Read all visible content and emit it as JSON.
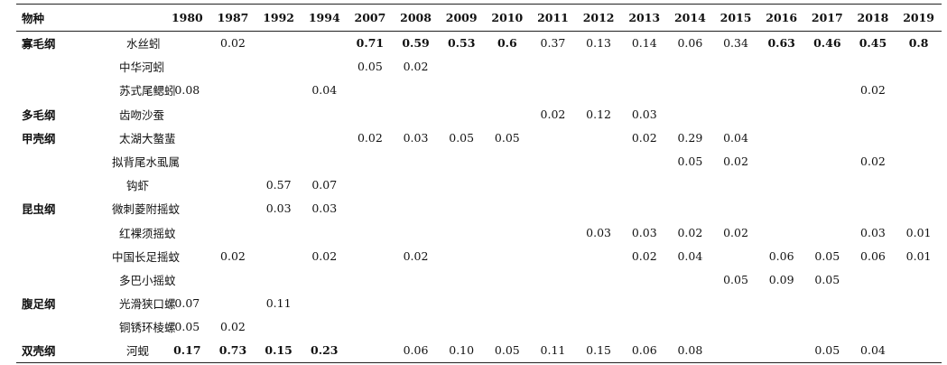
{
  "table": {
    "header_label": "物种",
    "years": [
      "1980",
      "1987",
      "1992",
      "1994",
      "2007",
      "2008",
      "2009",
      "2010",
      "2011",
      "2012",
      "2013",
      "2014",
      "2015",
      "2016",
      "2017",
      "2018",
      "2019"
    ],
    "rows": [
      {
        "class": "寡毛纲",
        "species": "水丝蚓",
        "values": [
          "",
          "0.02",
          "",
          "",
          "0.71",
          "0.59",
          "0.53",
          "0.6",
          "0.37",
          "0.13",
          "0.14",
          "0.06",
          "0.34",
          "0.63",
          "0.46",
          "0.45",
          "0.8"
        ],
        "bold": [
          false,
          false,
          false,
          false,
          true,
          true,
          true,
          true,
          false,
          false,
          false,
          false,
          false,
          true,
          true,
          true,
          true
        ]
      },
      {
        "class": "",
        "species": "中华河蚓",
        "values": [
          "",
          "",
          "",
          "",
          "0.05",
          "0.02",
          "",
          "",
          "",
          "",
          "",
          "",
          "",
          "",
          "",
          "",
          ""
        ]
      },
      {
        "class": "",
        "species": "苏式尾鳃蚓",
        "values": [
          "0.08",
          "",
          "",
          "0.04",
          "",
          "",
          "",
          "",
          "",
          "",
          "",
          "",
          "",
          "",
          "",
          "0.02",
          ""
        ]
      },
      {
        "class": "多毛纲",
        "species": "齿吻沙蚕",
        "values": [
          "",
          "",
          "",
          "",
          "",
          "",
          "",
          "",
          "0.02",
          "0.12",
          "0.03",
          "",
          "",
          "",
          "",
          "",
          ""
        ]
      },
      {
        "class": "甲壳纲",
        "species": "太湖大螯蜚",
        "values": [
          "",
          "",
          "",
          "",
          "0.02",
          "0.03",
          "0.05",
          "0.05",
          "",
          "",
          "0.02",
          "0.29",
          "0.04",
          "",
          "",
          "",
          ""
        ]
      },
      {
        "class": "",
        "species": "拟背尾水虱属",
        "values": [
          "",
          "",
          "",
          "",
          "",
          "",
          "",
          "",
          "",
          "",
          "",
          "0.05",
          "0.02",
          "",
          "",
          "0.02",
          ""
        ]
      },
      {
        "class": "",
        "species": "钩虾",
        "values": [
          "",
          "",
          "0.57",
          "0.07",
          "",
          "",
          "",
          "",
          "",
          "",
          "",
          "",
          "",
          "",
          "",
          "",
          ""
        ]
      },
      {
        "class": "昆虫纲",
        "species": "微刺菱附摇蚊",
        "values": [
          "",
          "",
          "0.03",
          "0.03",
          "",
          "",
          "",
          "",
          "",
          "",
          "",
          "",
          "",
          "",
          "",
          "",
          ""
        ]
      },
      {
        "class": "",
        "species": "红裸须摇蚊",
        "values": [
          "",
          "",
          "",
          "",
          "",
          "",
          "",
          "",
          "",
          "0.03",
          "0.03",
          "0.02",
          "0.02",
          "",
          "",
          "0.03",
          "0.01"
        ]
      },
      {
        "class": "",
        "species": "中国长足摇蚊",
        "values": [
          "",
          "0.02",
          "",
          "0.02",
          "",
          "0.02",
          "",
          "",
          "",
          "",
          "0.02",
          "0.04",
          "",
          "0.06",
          "0.05",
          "0.06",
          "0.01"
        ]
      },
      {
        "class": "",
        "species": "多巴小摇蚊",
        "values": [
          "",
          "",
          "",
          "",
          "",
          "",
          "",
          "",
          "",
          "",
          "",
          "",
          "0.05",
          "0.09",
          "0.05",
          "",
          ""
        ]
      },
      {
        "class": "腹足纲",
        "species": "光滑狭口螺",
        "values": [
          "0.07",
          "",
          "0.11",
          "",
          "",
          "",
          "",
          "",
          "",
          "",
          "",
          "",
          "",
          "",
          "",
          "",
          ""
        ]
      },
      {
        "class": "",
        "species": "铜锈环棱螺",
        "values": [
          "0.05",
          "0.02",
          "",
          "",
          "",
          "",
          "",
          "",
          "",
          "",
          "",
          "",
          "",
          "",
          "",
          "",
          ""
        ]
      },
      {
        "class": "双壳纲",
        "species": "河蚬",
        "values": [
          "0.17",
          "0.73",
          "0.15",
          "0.23",
          "",
          "0.06",
          "0.10",
          "0.05",
          "0.11",
          "0.15",
          "0.06",
          "0.08",
          "",
          "",
          "0.05",
          "0.04",
          ""
        ],
        "bold": [
          true,
          true,
          true,
          true,
          false,
          false,
          false,
          false,
          false,
          false,
          false,
          false,
          false,
          false,
          false,
          false,
          false
        ]
      }
    ]
  }
}
